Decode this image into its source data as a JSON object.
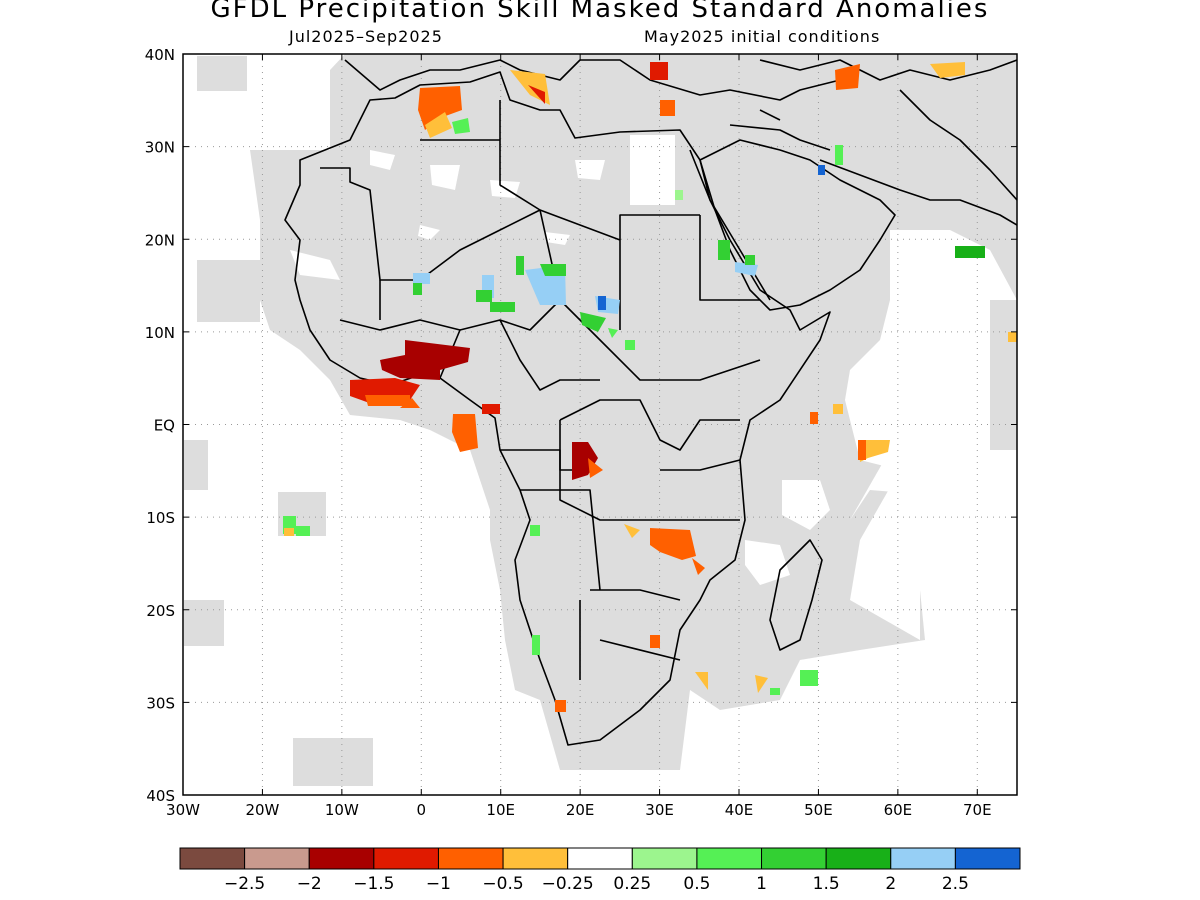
{
  "title": "GFDL Precipitation Skill Masked Standard Anomalies",
  "subtitle_left": "Jul2025–Sep2025",
  "subtitle_right": "May2025 initial conditions",
  "x_ticks": [
    "30W",
    "20W",
    "10W",
    "0",
    "10E",
    "20E",
    "30E",
    "40E",
    "50E",
    "60E",
    "70E"
  ],
  "y_ticks": [
    "40N",
    "30N",
    "20N",
    "10N",
    "EQ",
    "10S",
    "20S",
    "30S",
    "40S"
  ],
  "colorbar": {
    "colors": [
      "#7b4a3f",
      "#c99a8e",
      "#a80000",
      "#e01a00",
      "#ff6000",
      "#ffbf3a",
      "#ffffff",
      "#9cf58e",
      "#55f055",
      "#33d033",
      "#18b018",
      "#96cff5",
      "#1464d2"
    ],
    "labels": [
      "−2.5",
      "−2",
      "−1.5",
      "−1",
      "−0.5",
      "−0.25",
      "0.25",
      "0.5",
      "1",
      "1.5",
      "2",
      "2.5"
    ]
  },
  "chart_data": {
    "type": "heatmap",
    "title": "GFDL Precipitation Skill Masked Standard Anomalies",
    "period": "Jul2025–Sep2025",
    "initial_conditions": "May2025 initial conditions",
    "lon_range": [
      -30,
      75
    ],
    "lat_range": [
      -40,
      40
    ],
    "grid": true,
    "mask_color": "#dddddd",
    "anomaly_patches": [
      {
        "lon": 3,
        "lat": 7.5,
        "value": -1.75
      },
      {
        "lon": -3,
        "lat": 4,
        "value": -1.25
      },
      {
        "lon": 5,
        "lat": 3,
        "value": -0.75
      },
      {
        "lon": 20,
        "lat": -4.5,
        "value": -1.75
      },
      {
        "lon": 32,
        "lat": -13,
        "value": -0.75
      },
      {
        "lon": 1,
        "lat": 35,
        "value": -0.75
      },
      {
        "lon": 14,
        "lat": 14.5,
        "value": 2.25
      },
      {
        "lon": 8,
        "lat": 14,
        "value": 1.25
      },
      {
        "lon": 22,
        "lat": 12,
        "value": 2.5
      },
      {
        "lon": 67,
        "lat": 19,
        "value": 1.75
      },
      {
        "lon": 60,
        "lat": -2,
        "value": -0.5
      }
    ]
  }
}
